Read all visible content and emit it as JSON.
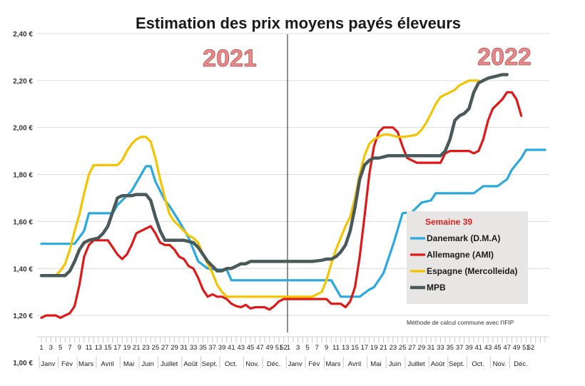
{
  "chart_data": {
    "type": "line",
    "title": "Estimation des prix moyens payés éleveurs",
    "ylim": [
      1.0,
      2.4
    ],
    "yticks": [
      "1,00 €",
      "1,20 €",
      "1,40 €",
      "1,60 €",
      "1,80 €",
      "2,00 €",
      "2,20 €",
      "2,40 €"
    ],
    "grid": true,
    "week_labels_year": [
      "1",
      "3",
      "5",
      "7",
      "9",
      "11",
      "13",
      "15",
      "17",
      "19",
      "21",
      "23",
      "25",
      "27",
      "29",
      "31",
      "33",
      "35",
      "37",
      "39",
      "41",
      "43",
      "45",
      "47",
      "49",
      "51",
      "52"
    ],
    "month_labels": [
      "Janv",
      "Fév",
      "Mars",
      "Avril",
      "Mai",
      "Juin",
      "Juillet",
      "Août",
      "Sept.",
      "Oct.",
      "Nov.",
      "Déc.",
      "Janv",
      "Fév",
      "Mars",
      "Avril",
      "Mai",
      "Juin",
      "Juillet",
      "Août",
      "Sept.",
      "Oct.",
      "Nov.",
      "Déc."
    ],
    "year_labels": [
      "2021",
      "2022"
    ],
    "legend": {
      "title": "Semaine 39",
      "placement": "right"
    },
    "note": "Méthode de calcul commune avec l'IFIP",
    "x": "week index (1-52 = 2021, 53-104 = 2022)",
    "series": [
      {
        "name": "Danemark (D.M.A)",
        "color": "#29a9df",
        "points": [
          [
            1,
            1.505
          ],
          [
            8,
            1.505
          ],
          [
            10,
            1.56
          ],
          [
            11,
            1.635
          ],
          [
            16,
            1.635
          ],
          [
            17,
            1.67
          ],
          [
            20,
            1.73
          ],
          [
            22,
            1.8
          ],
          [
            23,
            1.835
          ],
          [
            24,
            1.835
          ],
          [
            25,
            1.77
          ],
          [
            27,
            1.69
          ],
          [
            28,
            1.665
          ],
          [
            30,
            1.6
          ],
          [
            32,
            1.53
          ],
          [
            34,
            1.43
          ],
          [
            36,
            1.4
          ],
          [
            38,
            1.395
          ],
          [
            40,
            1.395
          ],
          [
            41,
            1.35
          ],
          [
            52,
            1.35
          ],
          [
            62,
            1.35
          ],
          [
            64,
            1.28
          ],
          [
            68,
            1.28
          ],
          [
            70,
            1.31
          ],
          [
            71,
            1.32
          ],
          [
            73,
            1.38
          ],
          [
            75,
            1.5
          ],
          [
            77,
            1.635
          ],
          [
            79,
            1.64
          ],
          [
            81,
            1.68
          ],
          [
            83,
            1.69
          ],
          [
            84,
            1.72
          ],
          [
            90,
            1.72
          ],
          [
            92,
            1.72
          ],
          [
            94,
            1.75
          ],
          [
            97,
            1.75
          ],
          [
            99,
            1.78
          ],
          [
            100,
            1.82
          ],
          [
            102,
            1.87
          ],
          [
            103,
            1.905
          ],
          [
            107,
            1.905
          ]
        ]
      },
      {
        "name": "Allemagne (AMI)",
        "color": "#e01818",
        "points": [
          [
            1,
            1.19
          ],
          [
            2,
            1.2
          ],
          [
            4,
            1.2
          ],
          [
            5,
            1.19
          ],
          [
            6,
            1.2
          ],
          [
            7,
            1.21
          ],
          [
            8,
            1.24
          ],
          [
            9,
            1.33
          ],
          [
            10,
            1.45
          ],
          [
            11,
            1.5
          ],
          [
            12,
            1.52
          ],
          [
            15,
            1.52
          ],
          [
            16,
            1.49
          ],
          [
            17,
            1.46
          ],
          [
            18,
            1.44
          ],
          [
            19,
            1.46
          ],
          [
            20,
            1.5
          ],
          [
            21,
            1.55
          ],
          [
            23,
            1.57
          ],
          [
            24,
            1.58
          ],
          [
            25,
            1.55
          ],
          [
            26,
            1.51
          ],
          [
            27,
            1.5
          ],
          [
            28,
            1.5
          ],
          [
            29,
            1.48
          ],
          [
            30,
            1.45
          ],
          [
            31,
            1.44
          ],
          [
            32,
            1.41
          ],
          [
            33,
            1.4
          ],
          [
            34,
            1.36
          ],
          [
            35,
            1.31
          ],
          [
            36,
            1.28
          ],
          [
            37,
            1.29
          ],
          [
            38,
            1.28
          ],
          [
            39,
            1.28
          ],
          [
            40,
            1.27
          ],
          [
            41,
            1.25
          ],
          [
            42,
            1.24
          ],
          [
            43,
            1.235
          ],
          [
            44,
            1.245
          ],
          [
            45,
            1.23
          ],
          [
            46,
            1.235
          ],
          [
            48,
            1.235
          ],
          [
            49,
            1.225
          ],
          [
            50,
            1.24
          ],
          [
            51,
            1.26
          ],
          [
            52,
            1.27
          ],
          [
            61,
            1.27
          ],
          [
            62,
            1.25
          ],
          [
            64,
            1.25
          ],
          [
            65,
            1.235
          ],
          [
            66,
            1.26
          ],
          [
            67,
            1.32
          ],
          [
            68,
            1.45
          ],
          [
            69,
            1.62
          ],
          [
            70,
            1.8
          ],
          [
            71,
            1.92
          ],
          [
            72,
            1.98
          ],
          [
            73,
            2.0
          ],
          [
            75,
            2.0
          ],
          [
            76,
            1.98
          ],
          [
            77,
            1.92
          ],
          [
            78,
            1.87
          ],
          [
            79,
            1.86
          ],
          [
            80,
            1.85
          ],
          [
            85,
            1.85
          ],
          [
            86,
            1.89
          ],
          [
            87,
            1.9
          ],
          [
            91,
            1.9
          ],
          [
            92,
            1.89
          ],
          [
            93,
            1.9
          ],
          [
            94,
            1.95
          ],
          [
            95,
            2.03
          ],
          [
            96,
            2.08
          ],
          [
            97,
            2.1
          ],
          [
            98,
            2.12
          ],
          [
            99,
            2.15
          ],
          [
            100,
            2.15
          ],
          [
            101,
            2.12
          ],
          [
            102,
            2.05
          ]
        ]
      },
      {
        "name": "Espagne (Mercolleida)",
        "color": "#f5c400",
        "points": [
          [
            1,
            1.37
          ],
          [
            3,
            1.37
          ],
          [
            4,
            1.37
          ],
          [
            5,
            1.39
          ],
          [
            6,
            1.42
          ],
          [
            7,
            1.48
          ],
          [
            8,
            1.56
          ],
          [
            9,
            1.63
          ],
          [
            10,
            1.72
          ],
          [
            11,
            1.8
          ],
          [
            12,
            1.84
          ],
          [
            17,
            1.84
          ],
          [
            18,
            1.86
          ],
          [
            19,
            1.9
          ],
          [
            20,
            1.93
          ],
          [
            21,
            1.95
          ],
          [
            22,
            1.96
          ],
          [
            23,
            1.96
          ],
          [
            24,
            1.94
          ],
          [
            25,
            1.87
          ],
          [
            26,
            1.78
          ],
          [
            27,
            1.7
          ],
          [
            28,
            1.63
          ],
          [
            29,
            1.6
          ],
          [
            30,
            1.58
          ],
          [
            31,
            1.56
          ],
          [
            32,
            1.54
          ],
          [
            33,
            1.53
          ],
          [
            34,
            1.51
          ],
          [
            35,
            1.46
          ],
          [
            36,
            1.42
          ],
          [
            37,
            1.38
          ],
          [
            38,
            1.33
          ],
          [
            39,
            1.3
          ],
          [
            40,
            1.28
          ],
          [
            41,
            1.28
          ],
          [
            52,
            1.28
          ],
          [
            58,
            1.28
          ],
          [
            59,
            1.29
          ],
          [
            60,
            1.3
          ],
          [
            61,
            1.35
          ],
          [
            62,
            1.42
          ],
          [
            63,
            1.48
          ],
          [
            64,
            1.53
          ],
          [
            65,
            1.58
          ],
          [
            66,
            1.62
          ],
          [
            67,
            1.7
          ],
          [
            68,
            1.8
          ],
          [
            69,
            1.88
          ],
          [
            70,
            1.93
          ],
          [
            71,
            1.95
          ],
          [
            72,
            1.96
          ],
          [
            73,
            1.97
          ],
          [
            74,
            1.97
          ],
          [
            75,
            1.965
          ],
          [
            76,
            1.96
          ],
          [
            77,
            1.96
          ],
          [
            79,
            1.965
          ],
          [
            80,
            1.97
          ],
          [
            81,
            1.99
          ],
          [
            82,
            2.02
          ],
          [
            83,
            2.06
          ],
          [
            84,
            2.1
          ],
          [
            85,
            2.13
          ],
          [
            86,
            2.14
          ],
          [
            87,
            2.15
          ],
          [
            88,
            2.16
          ],
          [
            89,
            2.18
          ],
          [
            90,
            2.19
          ],
          [
            91,
            2.2
          ],
          [
            92,
            2.2
          ],
          [
            93,
            2.2
          ]
        ]
      },
      {
        "name": "MPB",
        "color": "#4a5959",
        "points": [
          [
            1,
            1.37
          ],
          [
            6,
            1.37
          ],
          [
            7,
            1.39
          ],
          [
            8,
            1.43
          ],
          [
            9,
            1.48
          ],
          [
            10,
            1.51
          ],
          [
            11,
            1.52
          ],
          [
            13,
            1.53
          ],
          [
            14,
            1.55
          ],
          [
            15,
            1.58
          ],
          [
            16,
            1.64
          ],
          [
            17,
            1.7
          ],
          [
            18,
            1.71
          ],
          [
            20,
            1.71
          ],
          [
            21,
            1.715
          ],
          [
            23,
            1.715
          ],
          [
            24,
            1.69
          ],
          [
            25,
            1.62
          ],
          [
            26,
            1.56
          ],
          [
            27,
            1.52
          ],
          [
            28,
            1.52
          ],
          [
            31,
            1.52
          ],
          [
            33,
            1.51
          ],
          [
            34,
            1.49
          ],
          [
            35,
            1.46
          ],
          [
            36,
            1.43
          ],
          [
            37,
            1.41
          ],
          [
            38,
            1.39
          ],
          [
            39,
            1.39
          ],
          [
            40,
            1.4
          ],
          [
            41,
            1.4
          ],
          [
            42,
            1.41
          ],
          [
            43,
            1.42
          ],
          [
            44,
            1.42
          ],
          [
            45,
            1.43
          ],
          [
            52,
            1.43
          ],
          [
            58,
            1.43
          ],
          [
            60,
            1.435
          ],
          [
            61,
            1.44
          ],
          [
            62,
            1.44
          ],
          [
            63,
            1.45
          ],
          [
            64,
            1.47
          ],
          [
            65,
            1.5
          ],
          [
            66,
            1.56
          ],
          [
            67,
            1.66
          ],
          [
            68,
            1.78
          ],
          [
            69,
            1.84
          ],
          [
            70,
            1.86
          ],
          [
            71,
            1.87
          ],
          [
            72,
            1.87
          ],
          [
            73,
            1.875
          ],
          [
            74,
            1.88
          ],
          [
            75,
            1.88
          ],
          [
            85,
            1.88
          ],
          [
            86,
            1.9
          ],
          [
            87,
            1.95
          ],
          [
            88,
            2.03
          ],
          [
            89,
            2.05
          ],
          [
            90,
            2.06
          ],
          [
            91,
            2.08
          ],
          [
            92,
            2.15
          ],
          [
            93,
            2.19
          ],
          [
            94,
            2.2
          ],
          [
            95,
            2.21
          ],
          [
            97,
            2.22
          ],
          [
            98,
            2.225
          ],
          [
            99,
            2.225
          ]
        ]
      }
    ]
  }
}
